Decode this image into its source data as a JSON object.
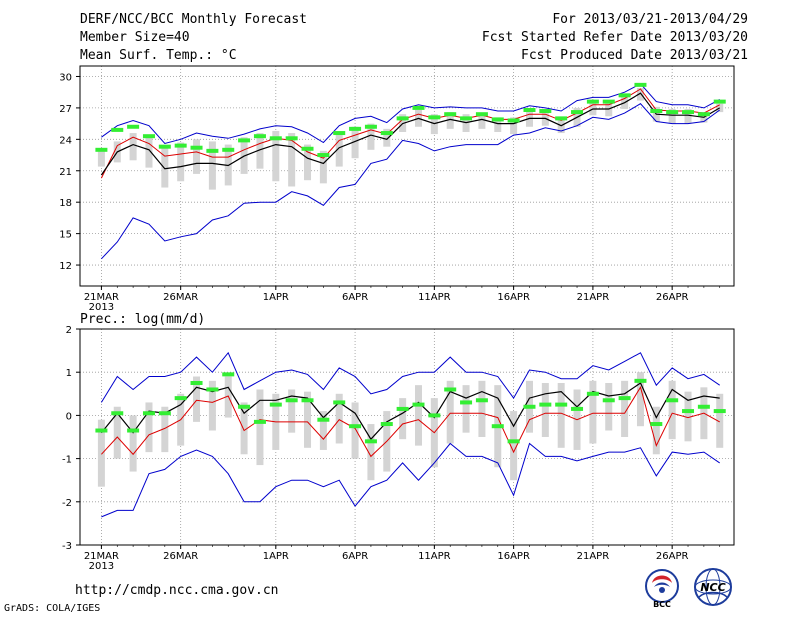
{
  "header": {
    "title": "DERF/NCC/BCC Monthly Forecast",
    "member_size": "Member Size=40",
    "period": "For 2013/03/21-2013/04/29",
    "fcst_started": "Fcst Started Refer Date 2013/03/20",
    "fcst_produced": "Fcst Produced Date 2013/03/21"
  },
  "footer": {
    "url": "http://cmdp.ncc.cma.gov.cn",
    "credit": "GrADS: COLA/IGES",
    "logo_left_text": "BCC",
    "logo_right_text": "NCC"
  },
  "colors": {
    "max_min": "#0000cc",
    "mean": "#000000",
    "median": "#dd0000",
    "box": "#d4d4d4",
    "obs": "#33ee33",
    "grid": "#999999"
  },
  "chart_data": [
    {
      "type": "line",
      "title": "Mean Surf. Temp.: °C",
      "xlabel": "",
      "ylabel": "",
      "year_label": "2013",
      "ylim": [
        10,
        31
      ],
      "yticks": [
        12,
        15,
        18,
        21,
        24,
        27,
        30
      ],
      "xticks": [
        {
          "day": 1,
          "label": "21MAR"
        },
        {
          "day": 6,
          "label": "26MAR"
        },
        {
          "day": 12,
          "label": "1APR"
        },
        {
          "day": 17,
          "label": "6APR"
        },
        {
          "day": 22,
          "label": "11APR"
        },
        {
          "day": 27,
          "label": "16APR"
        },
        {
          "day": 32,
          "label": "21APR"
        },
        {
          "day": 37,
          "label": "26APR"
        }
      ],
      "days": [
        1,
        2,
        3,
        4,
        5,
        6,
        7,
        8,
        9,
        10,
        11,
        12,
        13,
        14,
        15,
        16,
        17,
        18,
        19,
        20,
        21,
        22,
        23,
        24,
        25,
        26,
        27,
        28,
        29,
        30,
        31,
        32,
        33,
        34,
        35,
        36,
        37,
        38,
        39,
        40
      ],
      "series": [
        {
          "name": "max",
          "values": [
            24.2,
            25.3,
            25.8,
            25.3,
            23.6,
            24.0,
            24.6,
            24.3,
            24.1,
            24.5,
            25.0,
            25.3,
            25.2,
            24.6,
            23.7,
            25.3,
            26.0,
            26.2,
            25.6,
            26.9,
            27.3,
            27.0,
            27.1,
            27.0,
            27.0,
            26.7,
            26.7,
            27.2,
            27.0,
            26.7,
            27.7,
            28.0,
            28.0,
            28.5,
            29.3,
            27.6,
            27.3,
            27.3,
            27.0,
            27.8
          ]
        },
        {
          "name": "mean",
          "values": [
            20.6,
            22.8,
            23.5,
            23.0,
            21.2,
            21.4,
            21.7,
            21.7,
            21.5,
            22.4,
            23.0,
            23.5,
            23.3,
            22.2,
            21.7,
            23.2,
            23.8,
            24.4,
            24.0,
            25.5,
            26.0,
            25.5,
            25.9,
            25.6,
            25.9,
            25.5,
            25.5,
            26.0,
            26.0,
            25.3,
            26.1,
            26.9,
            26.9,
            27.5,
            28.4,
            26.4,
            26.3,
            26.3,
            26.1,
            27.0
          ]
        },
        {
          "name": "median",
          "values": [
            20.3,
            23.4,
            24.2,
            23.6,
            22.4,
            22.6,
            22.8,
            22.3,
            22.3,
            23.0,
            23.6,
            24.1,
            23.9,
            22.8,
            22.2,
            23.9,
            24.4,
            24.9,
            24.5,
            25.9,
            26.4,
            26.0,
            26.3,
            26.0,
            26.3,
            25.9,
            25.9,
            26.4,
            26.4,
            25.8,
            26.5,
            27.3,
            27.3,
            27.9,
            28.8,
            26.8,
            26.7,
            26.7,
            26.5,
            27.3
          ]
        },
        {
          "name": "min",
          "values": [
            12.6,
            14.2,
            16.5,
            15.9,
            14.3,
            14.7,
            15.0,
            16.3,
            16.7,
            17.9,
            18.0,
            18.0,
            19.0,
            18.6,
            17.7,
            19.4,
            19.7,
            21.7,
            22.1,
            23.9,
            23.6,
            22.9,
            23.3,
            23.5,
            23.5,
            23.5,
            24.4,
            24.6,
            25.1,
            24.8,
            25.3,
            26.1,
            25.9,
            26.5,
            27.4,
            25.7,
            25.5,
            25.5,
            25.7,
            26.8
          ]
        },
        {
          "name": "box_top",
          "values": [
            23.0,
            23.8,
            24.6,
            24.4,
            23.4,
            23.7,
            24.0,
            23.8,
            23.5,
            24.2,
            24.6,
            24.8,
            24.6,
            23.5,
            22.9,
            24.6,
            25.2,
            25.5,
            25.0,
            26.4,
            26.8,
            26.4,
            26.6,
            26.4,
            26.4,
            26.1,
            26.1,
            26.7,
            26.5,
            26.1,
            27.0,
            27.6,
            27.5,
            28.1,
            28.9,
            27.1,
            26.9,
            26.9,
            26.6,
            27.4
          ]
        },
        {
          "name": "box_bottom",
          "values": [
            21.4,
            21.8,
            22.0,
            21.3,
            19.4,
            20.0,
            20.7,
            19.2,
            19.6,
            20.7,
            21.2,
            20.0,
            19.5,
            20.1,
            19.8,
            21.4,
            22.2,
            23.0,
            23.3,
            24.7,
            25.2,
            24.5,
            25.0,
            24.7,
            25.0,
            24.7,
            24.5,
            25.2,
            25.3,
            24.6,
            25.2,
            26.3,
            26.2,
            26.9,
            27.7,
            25.7,
            25.5,
            25.5,
            25.6,
            26.6
          ]
        },
        {
          "name": "observed",
          "values": [
            23.0,
            24.9,
            25.2,
            24.3,
            23.3,
            23.4,
            23.2,
            22.9,
            23.0,
            23.9,
            24.3,
            24.1,
            24.1,
            23.1,
            22.5,
            24.6,
            25.0,
            25.2,
            24.6,
            26.0,
            27.0,
            26.1,
            26.4,
            26.0,
            26.4,
            25.9,
            25.8,
            26.8,
            26.7,
            26.0,
            26.6,
            27.6,
            27.6,
            28.2,
            29.2,
            26.7,
            26.6,
            26.6,
            26.4,
            27.6
          ]
        }
      ]
    },
    {
      "type": "line",
      "title": "Prec.: log(mm/d)",
      "xlabel": "",
      "ylabel": "",
      "year_label": "2013",
      "ylim": [
        -3,
        2
      ],
      "yticks": [
        -3,
        -2,
        -1,
        0,
        1,
        2
      ],
      "xticks": [
        {
          "day": 1,
          "label": "21MAR"
        },
        {
          "day": 6,
          "label": "26MAR"
        },
        {
          "day": 12,
          "label": "1APR"
        },
        {
          "day": 17,
          "label": "6APR"
        },
        {
          "day": 22,
          "label": "11APR"
        },
        {
          "day": 27,
          "label": "16APR"
        },
        {
          "day": 32,
          "label": "21APR"
        },
        {
          "day": 37,
          "label": "26APR"
        }
      ],
      "days": [
        1,
        2,
        3,
        4,
        5,
        6,
        7,
        8,
        9,
        10,
        11,
        12,
        13,
        14,
        15,
        16,
        17,
        18,
        19,
        20,
        21,
        22,
        23,
        24,
        25,
        26,
        27,
        28,
        29,
        30,
        31,
        32,
        33,
        34,
        35,
        36,
        37,
        38,
        39,
        40
      ],
      "series": [
        {
          "name": "max",
          "values": [
            0.3,
            0.9,
            0.6,
            0.9,
            0.9,
            1.0,
            1.35,
            1.0,
            1.45,
            0.6,
            0.8,
            1.0,
            1.05,
            0.95,
            0.6,
            1.1,
            0.9,
            0.5,
            0.6,
            0.9,
            1.0,
            1.0,
            1.35,
            1.0,
            1.0,
            0.9,
            0.4,
            1.05,
            1.0,
            0.85,
            0.85,
            1.15,
            1.05,
            1.25,
            1.45,
            0.7,
            1.1,
            0.85,
            0.95,
            0.7
          ]
        },
        {
          "name": "mean",
          "values": [
            -0.4,
            0.05,
            -0.4,
            0.1,
            0.05,
            0.25,
            0.65,
            0.55,
            0.65,
            0.05,
            0.35,
            0.35,
            0.45,
            0.4,
            -0.05,
            0.3,
            0.05,
            -0.55,
            -0.15,
            0.05,
            0.3,
            -0.05,
            0.55,
            0.4,
            0.55,
            0.4,
            -0.25,
            0.4,
            0.5,
            0.55,
            0.2,
            0.55,
            0.45,
            0.5,
            0.75,
            -0.05,
            0.6,
            0.35,
            0.45,
            0.4
          ]
        },
        {
          "name": "median",
          "values": [
            -0.9,
            -0.5,
            -0.9,
            -0.45,
            -0.3,
            -0.1,
            0.35,
            0.3,
            0.45,
            -0.35,
            -0.1,
            -0.15,
            -0.15,
            -0.15,
            -0.55,
            -0.1,
            -0.3,
            -0.95,
            -0.6,
            -0.2,
            -0.1,
            -0.4,
            0.05,
            0.05,
            0.05,
            -0.05,
            -0.85,
            -0.1,
            0.05,
            0.05,
            -0.1,
            0.05,
            0.05,
            0.05,
            0.65,
            -0.7,
            0.05,
            -0.05,
            0.05,
            -0.15
          ]
        },
        {
          "name": "min",
          "values": [
            -2.35,
            -2.2,
            -2.2,
            -1.35,
            -1.25,
            -0.95,
            -0.8,
            -0.95,
            -1.35,
            -2.0,
            -2.0,
            -1.65,
            -1.5,
            -1.5,
            -1.65,
            -1.5,
            -2.1,
            -1.65,
            -1.5,
            -1.1,
            -1.5,
            -1.1,
            -0.65,
            -0.95,
            -0.95,
            -1.1,
            -1.85,
            -0.65,
            -0.95,
            -0.95,
            -1.05,
            -0.95,
            -0.85,
            -0.85,
            -0.75,
            -1.4,
            -0.85,
            -0.9,
            -0.85,
            -1.1
          ]
        },
        {
          "name": "box_top",
          "values": [
            -0.1,
            0.2,
            0.0,
            0.3,
            0.2,
            0.5,
            0.9,
            0.8,
            0.9,
            0.3,
            0.6,
            0.5,
            0.6,
            0.55,
            0.1,
            0.5,
            0.3,
            -0.2,
            0.1,
            0.4,
            0.7,
            0.4,
            0.8,
            0.7,
            0.8,
            0.7,
            0.1,
            0.8,
            0.75,
            0.75,
            0.6,
            0.8,
            0.75,
            0.8,
            1.0,
            0.2,
            0.8,
            0.55,
            0.65,
            0.5
          ]
        },
        {
          "name": "box_bottom",
          "values": [
            -1.65,
            -1.0,
            -1.3,
            -0.85,
            -0.85,
            -0.7,
            -0.15,
            -0.35,
            -0.05,
            -0.9,
            -1.15,
            -0.8,
            -0.4,
            -0.75,
            -0.8,
            -0.65,
            -1.0,
            -1.5,
            -1.3,
            -0.55,
            -0.7,
            -1.2,
            -0.65,
            -0.4,
            -0.5,
            -1.2,
            -1.5,
            -0.4,
            -0.5,
            -0.75,
            -0.8,
            -0.65,
            -0.35,
            -0.5,
            -0.25,
            -0.9,
            -0.55,
            -0.6,
            -0.55,
            -0.75
          ]
        },
        {
          "name": "observed",
          "values": [
            -0.35,
            0.05,
            -0.35,
            0.05,
            0.05,
            0.4,
            0.75,
            0.6,
            0.95,
            0.2,
            -0.15,
            0.25,
            0.35,
            0.35,
            -0.1,
            0.3,
            -0.25,
            -0.6,
            -0.2,
            0.15,
            0.25,
            0.0,
            0.6,
            0.3,
            0.35,
            -0.25,
            -0.6,
            0.2,
            0.25,
            0.25,
            0.15,
            0.5,
            0.35,
            0.4,
            0.8,
            -0.2,
            0.35,
            0.1,
            0.2,
            0.1
          ]
        }
      ]
    }
  ]
}
